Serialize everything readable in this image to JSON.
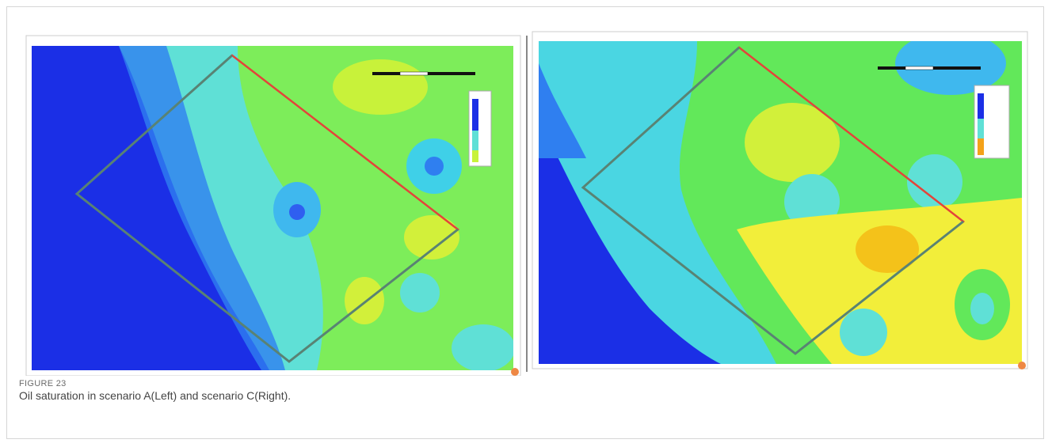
{
  "figure": {
    "label": "FIGURE 23",
    "caption": "Oil saturation in scenario A(Left) and scenario C(Right)."
  }
}
